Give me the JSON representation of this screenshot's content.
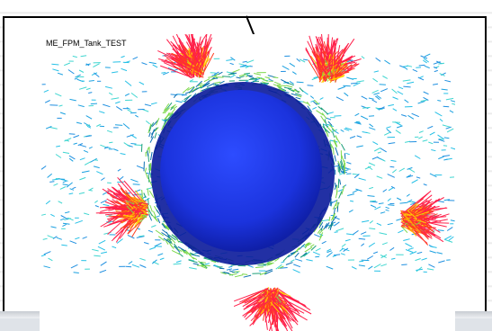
{
  "figure": {
    "title": "ME_FPM_Tank_TEST",
    "colors": {
      "sphere": "#1a2fd8",
      "sphere_highlight": "#2c47ff",
      "hot": "#ff1f4a",
      "warm": "#ffb000",
      "mid": "#7cd84a",
      "cool": "#25c0e6",
      "cold": "#1aa0e0"
    }
  }
}
